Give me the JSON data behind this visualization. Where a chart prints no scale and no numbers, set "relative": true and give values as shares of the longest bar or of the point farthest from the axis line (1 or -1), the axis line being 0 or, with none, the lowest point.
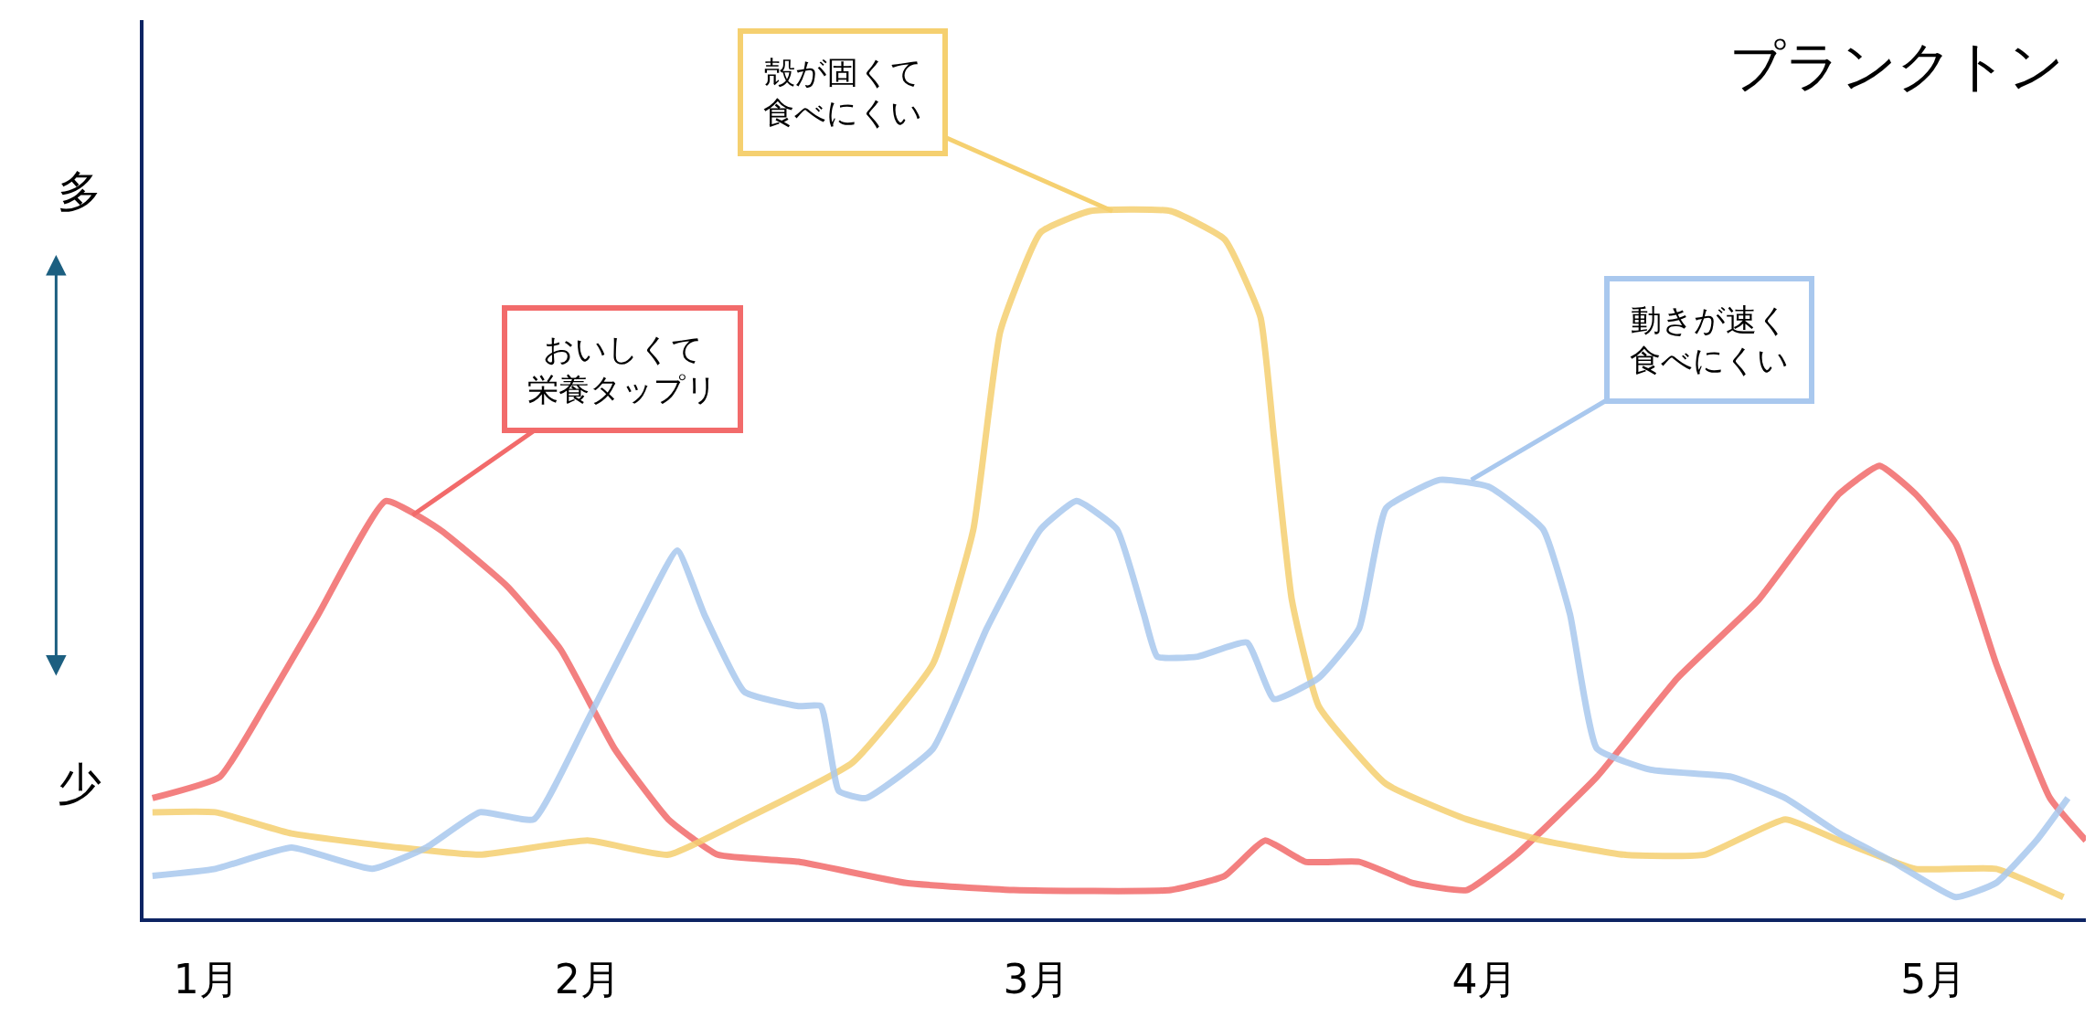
{
  "chart_data": {
    "type": "line",
    "title": "プランクトン",
    "relative": true,
    "marker": "none",
    "line_style": "solid",
    "xlim": [
      1.01,
      5.34
    ],
    "xticks": [
      {
        "value": 1.15,
        "label": "1月"
      },
      {
        "value": 2,
        "label": "2月"
      },
      {
        "value": 3,
        "label": "3月"
      },
      {
        "value": 4,
        "label": "4月"
      },
      {
        "value": 5,
        "label": "5月"
      }
    ],
    "series": [
      {
        "color": "#f26b6b",
        "x": [
          1.03,
          1.18,
          1.28,
          1.4,
          1.55,
          1.67,
          1.82,
          1.94,
          2.06,
          2.18,
          2.29,
          2.47,
          2.71,
          2.95,
          3.3,
          3.42,
          3.51,
          3.6,
          3.72,
          3.84,
          3.96,
          4.07,
          4.25,
          4.43,
          4.61,
          4.79,
          4.88,
          4.96,
          5.05,
          5.14,
          5.26,
          5.34
        ],
        "values": [
          0.17,
          0.2,
          0.3,
          0.43,
          0.59,
          0.55,
          0.47,
          0.38,
          0.24,
          0.14,
          0.09,
          0.08,
          0.05,
          0.04,
          0.04,
          0.06,
          0.11,
          0.08,
          0.08,
          0.05,
          0.04,
          0.09,
          0.2,
          0.34,
          0.45,
          0.6,
          0.64,
          0.6,
          0.53,
          0.36,
          0.17,
          0.11
        ]
      },
      {
        "color": "#f5d070",
        "x": [
          1.03,
          1.17,
          1.34,
          1.58,
          1.76,
          2.0,
          2.18,
          2.35,
          2.59,
          2.77,
          2.86,
          2.92,
          3.01,
          3.12,
          3.3,
          3.42,
          3.5,
          3.53,
          3.57,
          3.63,
          3.78,
          3.96,
          4.13,
          4.31,
          4.49,
          4.67,
          4.79,
          4.96,
          5.14,
          5.29
        ],
        "values": [
          0.15,
          0.15,
          0.12,
          0.1,
          0.09,
          0.11,
          0.09,
          0.14,
          0.22,
          0.36,
          0.55,
          0.83,
          0.97,
          1.0,
          1.0,
          0.96,
          0.85,
          0.68,
          0.45,
          0.3,
          0.19,
          0.14,
          0.11,
          0.09,
          0.09,
          0.14,
          0.11,
          0.07,
          0.07,
          0.03
        ]
      },
      {
        "color": "#a9c8ee",
        "x": [
          1.03,
          1.17,
          1.34,
          1.52,
          1.64,
          1.76,
          1.88,
          2.0,
          2.12,
          2.2,
          2.26,
          2.35,
          2.47,
          2.52,
          2.56,
          2.62,
          2.77,
          2.89,
          3.01,
          3.09,
          3.18,
          3.24,
          3.27,
          3.36,
          3.47,
          3.53,
          3.63,
          3.72,
          3.78,
          3.9,
          4.01,
          4.13,
          4.19,
          4.25,
          4.37,
          4.55,
          4.67,
          4.79,
          4.91,
          5.05,
          5.14,
          5.23,
          5.3
        ],
        "values": [
          0.06,
          0.07,
          0.1,
          0.07,
          0.1,
          0.15,
          0.14,
          0.28,
          0.43,
          0.52,
          0.43,
          0.32,
          0.3,
          0.3,
          0.18,
          0.17,
          0.24,
          0.41,
          0.55,
          0.59,
          0.55,
          0.43,
          0.37,
          0.37,
          0.39,
          0.31,
          0.34,
          0.41,
          0.58,
          0.62,
          0.61,
          0.55,
          0.43,
          0.24,
          0.21,
          0.2,
          0.17,
          0.12,
          0.08,
          0.03,
          0.05,
          0.11,
          0.17
        ]
      }
    ],
    "annotations": [
      {
        "text": "おいしくて栄養タップリ",
        "x": 1.61,
        "y": 0.57
      },
      {
        "text": "殻が固くて食べにくい",
        "x": 3.17,
        "y": 1.0
      },
      {
        "text": "動きが速く食べにくい",
        "x": 3.97,
        "y": 0.62
      },
      "多",
      "少"
    ]
  }
}
